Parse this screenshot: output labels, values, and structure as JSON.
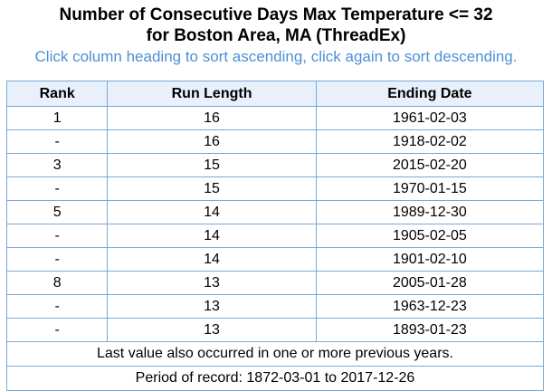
{
  "header": {
    "title_line1": "Number of Consecutive Days Max Temperature <= 32",
    "title_line2": "for Boston Area, MA (ThreadEx)",
    "instructions": "Click column heading to sort ascending, click again to sort descending."
  },
  "table": {
    "columns": [
      "Rank",
      "Run Length",
      "Ending Date"
    ],
    "rows": [
      {
        "rank": "1",
        "run_length": "16",
        "ending_date": "1961-02-03"
      },
      {
        "rank": "-",
        "run_length": "16",
        "ending_date": "1918-02-02"
      },
      {
        "rank": "3",
        "run_length": "15",
        "ending_date": "2015-02-20"
      },
      {
        "rank": "-",
        "run_length": "15",
        "ending_date": "1970-01-15"
      },
      {
        "rank": "5",
        "run_length": "14",
        "ending_date": "1989-12-30"
      },
      {
        "rank": "-",
        "run_length": "14",
        "ending_date": "1905-02-05"
      },
      {
        "rank": "-",
        "run_length": "14",
        "ending_date": "1901-02-10"
      },
      {
        "rank": "8",
        "run_length": "13",
        "ending_date": "2005-01-28"
      },
      {
        "rank": "-",
        "run_length": "13",
        "ending_date": "1963-12-23"
      },
      {
        "rank": "-",
        "run_length": "13",
        "ending_date": "1893-01-23"
      }
    ],
    "footnote": "Last value also occurred in one or more previous years.",
    "period": "Period of record: 1872-03-01 to 2017-12-26"
  },
  "colors": {
    "accent_text": "#4d8fd6",
    "border": "#7aa7d8",
    "header_bg": "#e8f1fb"
  }
}
